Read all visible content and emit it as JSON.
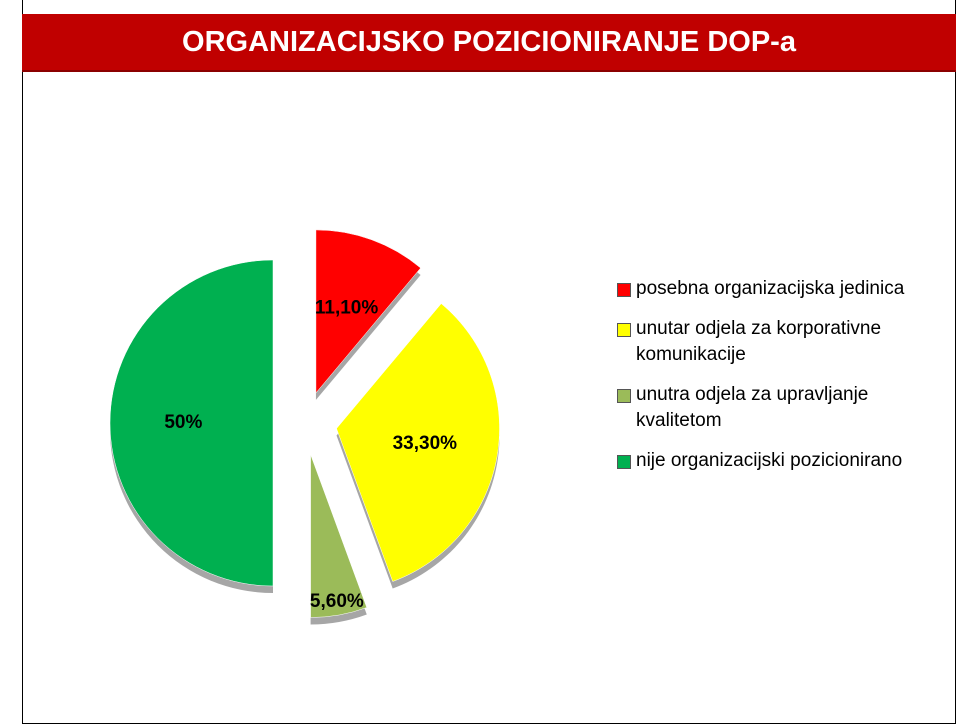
{
  "chart_data": {
    "type": "pie",
    "title": "ORGANIZACIJSKO POZICIONIRANJE DOP-a",
    "categories": [
      "posebna organizacijska jedinica",
      "unutar odjela za korporativne komunikacije",
      "unutra odjela za upravljanje kvalitetom",
      "nije organizacijski pozicionirano"
    ],
    "values": [
      11.1,
      33.3,
      5.6,
      50
    ],
    "value_labels": [
      "11,10%",
      "33,30%",
      "5,60%",
      "50%"
    ],
    "colors": [
      "#ff0000",
      "#ffff00",
      "#9bbb59",
      "#00b050"
    ],
    "legend": "right"
  }
}
